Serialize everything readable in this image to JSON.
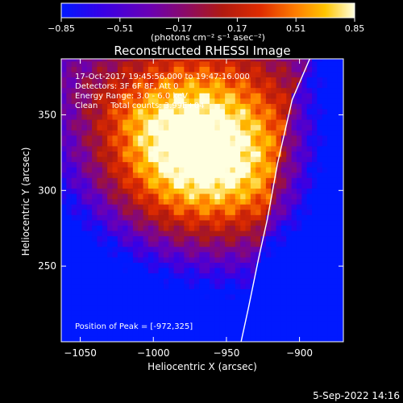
{
  "chart_data": {
    "type": "heatmap",
    "title": "Reconstructed RHESSI Image",
    "xlabel": "Heliocentric X (arcsec)",
    "ylabel": "Heliocentric Y (arcsec)",
    "xlim": [
      -1063,
      -870
    ],
    "ylim": [
      200,
      387
    ],
    "x_ticks": [
      -1050,
      -1000,
      -950,
      -900
    ],
    "x_tick_labels": [
      "−1050",
      "−1000",
      "−950",
      "−900"
    ],
    "y_ticks": [
      250,
      300,
      350
    ],
    "y_tick_labels": [
      "250",
      "300",
      "350"
    ],
    "colorbar": {
      "range": [
        -0.85,
        0.85
      ],
      "ticks": [
        -0.85,
        -0.51,
        -0.17,
        0.17,
        0.51,
        0.85
      ],
      "tick_labels": [
        "−0.85",
        "−0.51",
        "−0.17",
        "0.17",
        "0.51",
        "0.85"
      ],
      "units_label": "(photons cm⁻² s⁻¹ asec⁻²)"
    },
    "annotations": [
      "17-Oct-2017 19:45:56.000 to 19:47:16.000",
      "Detectors: 3F 6F 8F, Att 0",
      "Energy Range: 3.0 - 6.0 keV",
      "Clean     Total counts: 3.99E+04",
      "Position of Peak = [-972,325]"
    ],
    "peak": {
      "x": -972,
      "y": 325,
      "value": 0.85
    },
    "limb_curve": [
      {
        "x": -940,
        "y": 200
      },
      {
        "x": -935,
        "y": 222
      },
      {
        "x": -928,
        "y": 255
      },
      {
        "x": -922,
        "y": 281
      },
      {
        "x": -915,
        "y": 318
      },
      {
        "x": -905,
        "y": 360
      },
      {
        "x": -893,
        "y": 387
      }
    ],
    "grid": false
  },
  "footer": {
    "timestamp": "5-Sep-2022 14:16"
  }
}
